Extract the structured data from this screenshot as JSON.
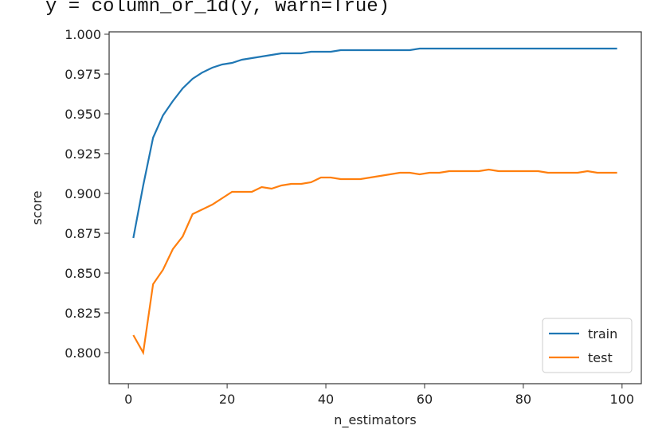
{
  "code_text": "y = column_or_1d(y, warn=True)",
  "chart_data": {
    "type": "line",
    "x_label": "n_estimators",
    "y_label": "score",
    "x": [
      1,
      3,
      5,
      7,
      9,
      11,
      13,
      15,
      17,
      19,
      21,
      23,
      25,
      27,
      29,
      31,
      33,
      35,
      37,
      39,
      41,
      43,
      45,
      47,
      49,
      51,
      53,
      55,
      57,
      59,
      61,
      63,
      65,
      67,
      69,
      71,
      73,
      75,
      77,
      79,
      81,
      83,
      85,
      87,
      89,
      91,
      93,
      95,
      97,
      99
    ],
    "series": [
      {
        "name": "train",
        "color": "#1f77b4",
        "values": [
          0.872,
          0.905,
          0.935,
          0.949,
          0.958,
          0.966,
          0.972,
          0.976,
          0.979,
          0.981,
          0.982,
          0.984,
          0.985,
          0.986,
          0.987,
          0.988,
          0.988,
          0.988,
          0.989,
          0.989,
          0.989,
          0.99,
          0.99,
          0.99,
          0.99,
          0.99,
          0.99,
          0.99,
          0.99,
          0.991,
          0.991,
          0.991,
          0.991,
          0.991,
          0.991,
          0.991,
          0.991,
          0.991,
          0.991,
          0.991,
          0.991,
          0.991,
          0.991,
          0.991,
          0.991,
          0.991,
          0.991,
          0.991,
          0.991,
          0.991
        ]
      },
      {
        "name": "test",
        "color": "#ff7f0e",
        "values": [
          0.811,
          0.8,
          0.843,
          0.852,
          0.865,
          0.873,
          0.887,
          0.89,
          0.893,
          0.897,
          0.901,
          0.901,
          0.901,
          0.904,
          0.903,
          0.905,
          0.906,
          0.906,
          0.907,
          0.91,
          0.91,
          0.909,
          0.909,
          0.909,
          0.91,
          0.911,
          0.912,
          0.913,
          0.913,
          0.912,
          0.913,
          0.913,
          0.914,
          0.914,
          0.914,
          0.914,
          0.915,
          0.914,
          0.914,
          0.914,
          0.914,
          0.914,
          0.913,
          0.913,
          0.913,
          0.913,
          0.914,
          0.913,
          0.913,
          0.913
        ]
      }
    ],
    "xlim": [
      -3.9,
      103.9
    ],
    "xticks": [
      0,
      20,
      40,
      60,
      80,
      100
    ],
    "ylim": [
      0.7805,
      1.0015
    ],
    "yticks": [
      {
        "value": 0.8,
        "label": "0.800"
      },
      {
        "value": 0.825,
        "label": "0.825"
      },
      {
        "value": 0.85,
        "label": "0.850"
      },
      {
        "value": 0.875,
        "label": "0.875"
      },
      {
        "value": 0.9,
        "label": "0.900"
      },
      {
        "value": 0.925,
        "label": "0.925"
      },
      {
        "value": 0.95,
        "label": "0.950"
      },
      {
        "value": 0.975,
        "label": "0.975"
      },
      {
        "value": 1.0,
        "label": "1.000"
      }
    ],
    "grid": false,
    "legend": "lower right"
  }
}
